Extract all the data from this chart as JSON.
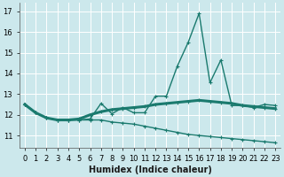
{
  "xlabel": "Humidex (Indice chaleur)",
  "background_color": "#cce8ec",
  "grid_color": "#ffffff",
  "line_color": "#1a7a6e",
  "x_values": [
    0,
    1,
    2,
    3,
    4,
    5,
    6,
    7,
    8,
    9,
    10,
    11,
    12,
    13,
    14,
    15,
    16,
    17,
    18,
    19,
    20,
    21,
    22,
    23
  ],
  "line1_y": [
    12.5,
    12.1,
    11.85,
    11.75,
    11.75,
    11.75,
    11.8,
    12.55,
    12.05,
    12.35,
    12.1,
    12.1,
    12.9,
    12.9,
    14.35,
    15.5,
    16.9,
    13.55,
    14.65,
    12.45,
    12.45,
    12.35,
    12.5,
    12.45
  ],
  "line2_y": [
    12.5,
    12.1,
    11.85,
    11.75,
    11.75,
    11.8,
    12.0,
    12.15,
    12.25,
    12.3,
    12.35,
    12.4,
    12.5,
    12.55,
    12.6,
    12.65,
    12.7,
    12.65,
    12.6,
    12.55,
    12.45,
    12.4,
    12.35,
    12.3
  ],
  "line3_y": [
    12.5,
    12.1,
    11.85,
    11.75,
    11.75,
    11.75,
    11.75,
    11.75,
    11.65,
    11.6,
    11.55,
    11.45,
    11.35,
    11.25,
    11.15,
    11.05,
    11.0,
    10.95,
    10.9,
    10.85,
    10.8,
    10.75,
    10.7,
    10.65
  ],
  "yticks": [
    11,
    12,
    13,
    14,
    15,
    16,
    17
  ],
  "ylim": [
    10.4,
    17.4
  ],
  "xlim": [
    -0.5,
    23.5
  ]
}
